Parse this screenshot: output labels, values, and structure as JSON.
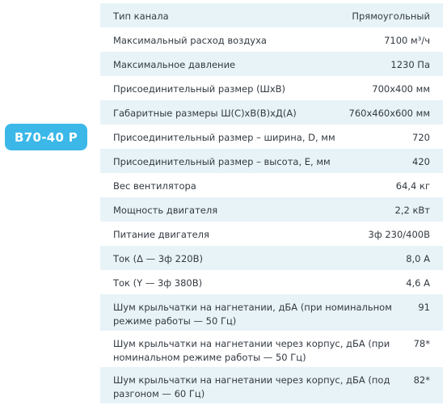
{
  "model_badge": "В70-40 Р",
  "specs": [
    {
      "label": "Тип канала",
      "value": "Прямоугольный"
    },
    {
      "label": "Максимальный расход воздуха",
      "value": "7100 м³/ч"
    },
    {
      "label": "Максимальное давление",
      "value": "1230 Па"
    },
    {
      "label": "Присоединительный размер (ШхВ)",
      "value": "700х400 мм"
    },
    {
      "label": "Габаритные размеры Ш(С)хВ(В)хД(А)",
      "value": "760х460х600 мм"
    },
    {
      "label": "Присоединительный размер – ширина, D, мм",
      "value": "720"
    },
    {
      "label": "Присоединительный размер – высота, E, мм",
      "value": "420"
    },
    {
      "label": "Вес вентилятора",
      "value": "64,4 кг"
    },
    {
      "label": "Мощность двигателя",
      "value": "2,2 кВт"
    },
    {
      "label": "Питание двигателя",
      "value": "3ф 230/400В"
    },
    {
      "label": "Ток (Δ — 3ф 220В)",
      "value": "8,0 А"
    },
    {
      "label": "Ток (Y — 3ф 380В)",
      "value": "4,6 А"
    },
    {
      "label": "Шум крыльчатки на нагнетании, дБА (при номинальном режиме работы — 50 Гц)",
      "value": "91"
    },
    {
      "label": "Шум крыльчатки на нагнетании через корпус, дБА (при номинальном режиме работы — 50 Гц)",
      "value": "78*"
    },
    {
      "label": "Шум крыльчатки на нагнетании через корпус, дБА (под разгоном — 60 Гц)",
      "value": "82*"
    }
  ],
  "colors": {
    "badge": "#3bb8e8",
    "row_alt": "#e8f3f7",
    "text": "#333a42"
  }
}
